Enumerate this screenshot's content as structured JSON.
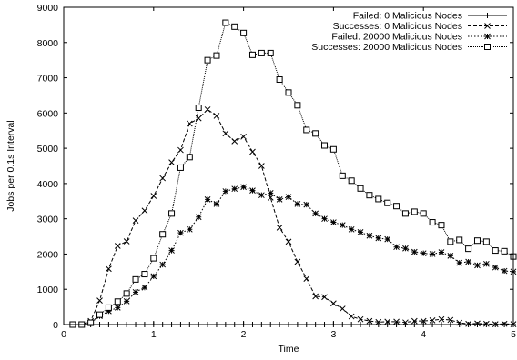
{
  "chart_data": {
    "type": "line",
    "title": "",
    "xlabel": "Time",
    "ylabel": "Jobs per 0.1s Interval",
    "xlim": [
      0,
      5
    ],
    "ylim": [
      0,
      9000
    ],
    "xticks": [
      0,
      1,
      2,
      3,
      4,
      5
    ],
    "yticks": [
      0,
      1000,
      2000,
      3000,
      4000,
      5000,
      6000,
      7000,
      8000,
      9000
    ],
    "grid": false,
    "legend_position": "top-right",
    "series": [
      {
        "name": "Failed: 0 Malicious Nodes",
        "marker": "plus",
        "dash": "solid",
        "x": [
          0.1,
          0.2,
          0.3,
          0.4,
          0.5,
          0.6,
          0.7,
          0.8,
          0.9,
          1.0,
          1.1,
          1.2,
          1.3,
          1.4,
          1.5,
          1.6,
          1.7,
          1.8,
          1.9,
          2.0,
          2.1,
          2.2,
          2.3,
          2.4,
          2.5,
          2.6,
          2.7,
          2.8,
          2.9,
          3.0,
          3.1,
          3.2,
          3.3,
          3.4,
          3.5,
          3.6,
          3.7,
          3.8,
          3.9,
          4.0,
          4.1,
          4.2,
          4.3,
          4.4,
          4.5,
          4.6,
          4.7,
          4.8,
          4.9,
          5.0
        ],
        "y": [
          0,
          0,
          0,
          0,
          0,
          0,
          0,
          0,
          0,
          0,
          0,
          0,
          0,
          0,
          0,
          0,
          0,
          0,
          0,
          0,
          0,
          0,
          0,
          0,
          0,
          0,
          0,
          0,
          0,
          0,
          0,
          0,
          0,
          0,
          0,
          0,
          0,
          0,
          0,
          0,
          0,
          0,
          0,
          0,
          0,
          0,
          0,
          0,
          0,
          0
        ]
      },
      {
        "name": "Successes: 0 Malicious Nodes",
        "marker": "x",
        "dash": "dashed",
        "x": [
          0.1,
          0.2,
          0.3,
          0.4,
          0.5,
          0.6,
          0.7,
          0.8,
          0.9,
          1.0,
          1.1,
          1.2,
          1.3,
          1.4,
          1.5,
          1.6,
          1.7,
          1.8,
          1.9,
          2.0,
          2.1,
          2.2,
          2.3,
          2.4,
          2.5,
          2.6,
          2.7,
          2.8,
          2.9,
          3.0,
          3.1,
          3.2,
          3.3,
          3.4,
          3.5,
          3.6,
          3.7,
          3.8,
          3.9,
          4.0,
          4.1,
          4.2,
          4.3,
          4.4,
          4.5,
          4.6,
          4.7,
          4.8,
          4.9,
          5.0
        ],
        "y": [
          0,
          0,
          100,
          680,
          1580,
          2230,
          2360,
          2950,
          3230,
          3650,
          4150,
          4600,
          4950,
          5700,
          5850,
          6100,
          5920,
          5420,
          5200,
          5330,
          4900,
          4500,
          3600,
          2750,
          2350,
          1780,
          1300,
          800,
          780,
          600,
          450,
          230,
          150,
          100,
          70,
          80,
          80,
          60,
          100,
          100,
          120,
          150,
          130,
          50,
          20,
          30,
          20,
          10,
          20,
          10
        ]
      },
      {
        "name": "Failed: 20000 Malicious Nodes",
        "marker": "star",
        "dash": "dotted",
        "x": [
          0.1,
          0.2,
          0.3,
          0.4,
          0.5,
          0.6,
          0.7,
          0.8,
          0.9,
          1.0,
          1.1,
          1.2,
          1.3,
          1.4,
          1.5,
          1.6,
          1.7,
          1.8,
          1.9,
          2.0,
          2.1,
          2.2,
          2.3,
          2.4,
          2.5,
          2.6,
          2.7,
          2.8,
          2.9,
          3.0,
          3.1,
          3.2,
          3.3,
          3.4,
          3.5,
          3.6,
          3.7,
          3.8,
          3.9,
          4.0,
          4.1,
          4.2,
          4.3,
          4.4,
          4.5,
          4.6,
          4.7,
          4.8,
          4.9,
          5.0
        ],
        "y": [
          0,
          0,
          50,
          240,
          380,
          480,
          660,
          920,
          1050,
          1370,
          1700,
          2100,
          2600,
          2700,
          3050,
          3550,
          3420,
          3780,
          3850,
          3900,
          3800,
          3670,
          3730,
          3550,
          3620,
          3420,
          3400,
          3150,
          3000,
          2900,
          2820,
          2700,
          2620,
          2520,
          2450,
          2420,
          2200,
          2160,
          2060,
          2020,
          2000,
          2050,
          1950,
          1750,
          1780,
          1680,
          1720,
          1620,
          1520,
          1500
        ]
      },
      {
        "name": "Successes: 20000 Malicious Nodes",
        "marker": "square",
        "dash": "dense-dotted",
        "x": [
          0.1,
          0.2,
          0.3,
          0.4,
          0.5,
          0.6,
          0.7,
          0.8,
          0.9,
          1.0,
          1.1,
          1.2,
          1.3,
          1.4,
          1.5,
          1.6,
          1.7,
          1.8,
          1.9,
          2.0,
          2.1,
          2.2,
          2.3,
          2.4,
          2.5,
          2.6,
          2.7,
          2.8,
          2.9,
          3.0,
          3.1,
          3.2,
          3.3,
          3.4,
          3.5,
          3.6,
          3.7,
          3.8,
          3.9,
          4.0,
          4.1,
          4.2,
          4.3,
          4.4,
          4.5,
          4.6,
          4.7,
          4.8,
          4.9,
          5.0
        ],
        "y": [
          0,
          0,
          50,
          280,
          480,
          650,
          880,
          1280,
          1430,
          1880,
          2560,
          3150,
          4450,
          4750,
          6150,
          7500,
          7630,
          8560,
          8450,
          8270,
          7650,
          7700,
          7700,
          6950,
          6580,
          6220,
          5520,
          5420,
          5080,
          4970,
          4220,
          4080,
          3860,
          3670,
          3560,
          3450,
          3360,
          3150,
          3200,
          3150,
          2900,
          2820,
          2350,
          2400,
          2150,
          2380,
          2350,
          2100,
          2080,
          1930
        ]
      }
    ]
  }
}
